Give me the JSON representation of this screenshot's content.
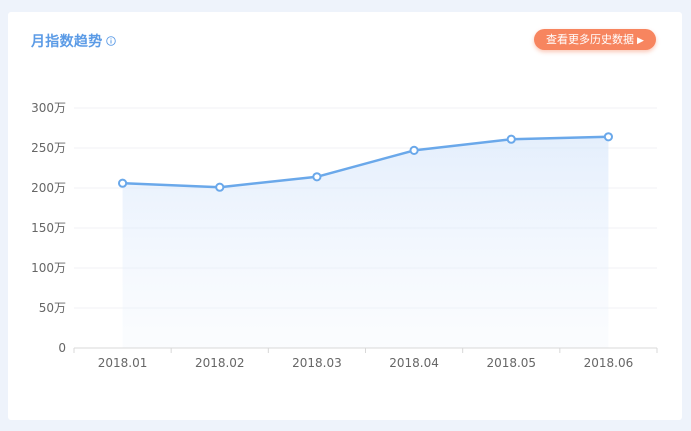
{
  "header": {
    "title": "月指数趋势",
    "info_icon": "info-icon",
    "history_button_label": "查看更多历史数据",
    "history_button_icon": "play-triangle-icon"
  },
  "colors": {
    "accent": "#5b9be6",
    "line": "#6aa8ea",
    "button": "#f7855f",
    "background": "#eef3fb"
  },
  "chart_data": {
    "type": "area",
    "title": "月指数趋势",
    "xlabel": "",
    "ylabel": "",
    "categories": [
      "2018.01",
      "2018.02",
      "2018.03",
      "2018.04",
      "2018.05",
      "2018.06"
    ],
    "series": [
      {
        "values": [
          2060000,
          2010000,
          2140000,
          2470000,
          2610000,
          2640000
        ]
      }
    ],
    "ylim": [
      0,
      3000000
    ],
    "yticks": [
      0,
      500000,
      1000000,
      1500000,
      2000000,
      2500000,
      3000000
    ],
    "ytick_labels": [
      "0",
      "50万",
      "100万",
      "150万",
      "200万",
      "250万",
      "300万"
    ],
    "grid": true,
    "legend": "none"
  }
}
